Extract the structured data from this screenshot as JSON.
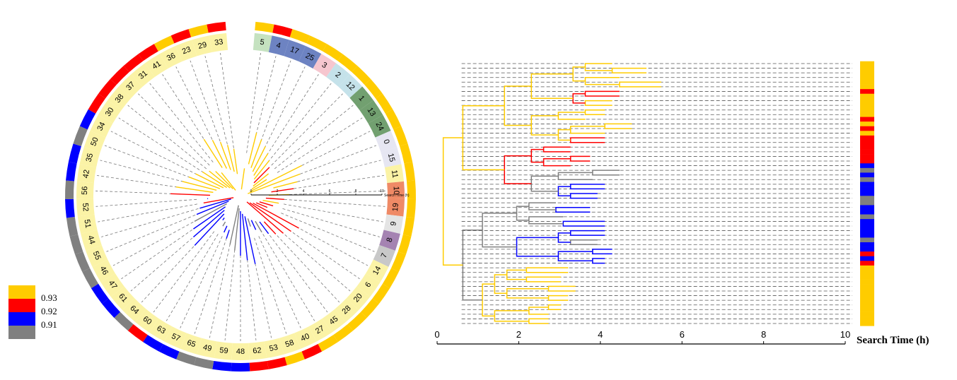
{
  "chart_data": [
    {
      "type": "circular-dendrogram",
      "leaves_clockwise": [
        "5",
        "4",
        "17",
        "25",
        "3",
        "2",
        "12",
        "1",
        "13",
        "24",
        "0",
        "15",
        "11",
        "10",
        "19",
        "9",
        "8",
        "7",
        "14",
        "6",
        "20",
        "28",
        "45",
        "27",
        "40",
        "58",
        "53",
        "62",
        "48",
        "59",
        "49",
        "65",
        "57",
        "63",
        "60",
        "64",
        "61",
        "47",
        "46",
        "55",
        "44",
        "51",
        "52",
        "56",
        "42",
        "35",
        "50",
        "34",
        "30",
        "38",
        "37",
        "31",
        "41",
        "36",
        "23",
        "29",
        "33"
      ],
      "cluster_colors": {
        "5": "#c5e2c0",
        "4": "#6d83c2",
        "17": "#6d83c2",
        "25": "#6d83c2",
        "3": "#f6c6cf",
        "2": "#c5e2ea",
        "12": "#c5e2ea",
        "1": "#72a070",
        "13": "#72a070",
        "24": "#72a070",
        "0": "#e6e6f2",
        "15": "#e6e6f2",
        "11": "#fbf3a6",
        "10": "#ef8a66",
        "19": "#ef8a66",
        "9": "#e4e4e4",
        "8": "#a583b2",
        "7": "#c8c8c8"
      },
      "default_cluster_color": "#fbf3a6",
      "mini_axis_label": "Search Time (h)",
      "mini_axis_ticks": [
        "0",
        "2",
        "4",
        "6",
        "8",
        "10"
      ]
    },
    {
      "type": "dendrogram",
      "xlabel": "Search Time (h)",
      "xlim": [
        0,
        10
      ],
      "xticks": [
        "0",
        "2",
        "4",
        "6",
        "8",
        "10"
      ],
      "leaf_count": 57,
      "legend": [
        {
          "label": "0.93",
          "color": "#ffcc00"
        },
        {
          "label": "0.92",
          "color": "#ff0000"
        },
        {
          "label": "0.91",
          "color": "#0000ff"
        },
        {
          "label": "",
          "color": "#808080"
        }
      ],
      "ring_colors": [
        "#808080",
        "#0000ff",
        "#ff0000",
        "#ffcc00"
      ],
      "strip_pattern": [
        3,
        3,
        3,
        3,
        3,
        3,
        2,
        3,
        3,
        3,
        3,
        3,
        2,
        3,
        2,
        3,
        2,
        2,
        2,
        2,
        2,
        2,
        1,
        0,
        1,
        0,
        1,
        1,
        1,
        0,
        0,
        1,
        1,
        0,
        1,
        1,
        1,
        1,
        0,
        1,
        1,
        2,
        1,
        2,
        3,
        3,
        3,
        3,
        3,
        3,
        3,
        3,
        3,
        3,
        3,
        3,
        3
      ],
      "ring_pattern": [
        3,
        2,
        3,
        3,
        3,
        3,
        3,
        3,
        3,
        3,
        3,
        3,
        3,
        3,
        3,
        3,
        3,
        3,
        3,
        3,
        3,
        3,
        3,
        3,
        2,
        3,
        2,
        2,
        1,
        1,
        0,
        0,
        1,
        1,
        2,
        0,
        1,
        1,
        0,
        0,
        0,
        0,
        1,
        0,
        1,
        1,
        0,
        1,
        2,
        2,
        2,
        2,
        2,
        3,
        2,
        3,
        2
      ]
    }
  ]
}
